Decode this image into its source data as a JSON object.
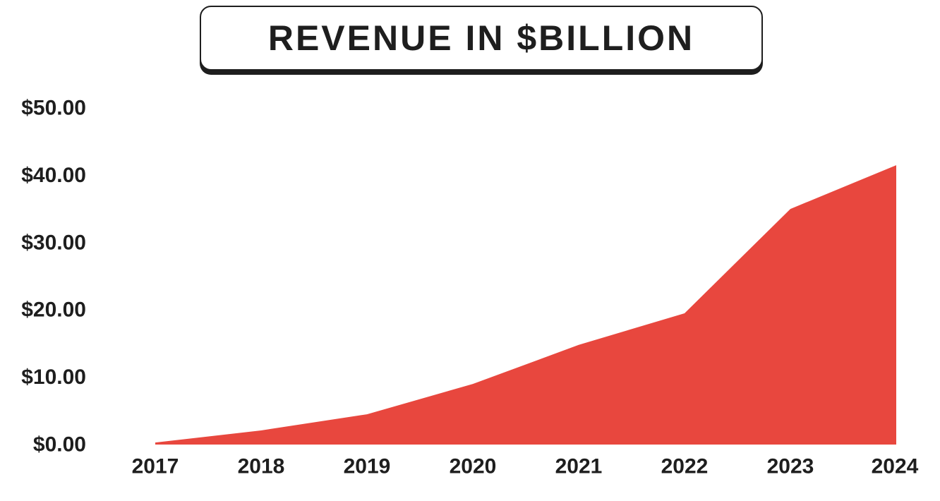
{
  "chart_data": {
    "type": "area",
    "title": "REVENUE IN $BILLION",
    "xlabel": "",
    "ylabel": "",
    "x": [
      "2017",
      "2018",
      "2019",
      "2020",
      "2021",
      "2022",
      "2023",
      "2024"
    ],
    "series": [
      {
        "values": [
          0.3,
          2.1,
          4.5,
          9.0,
          14.8,
          19.5,
          35.0,
          41.5
        ],
        "color": "#e8473e"
      }
    ],
    "ylim": [
      0,
      50
    ],
    "yticks": [
      0,
      10,
      20,
      30,
      40,
      50
    ],
    "ytick_labels": [
      "$0.00",
      "$10.00",
      "$20.00",
      "$30.00",
      "$40.00",
      "$50.00"
    ],
    "grid": false,
    "legend": "none"
  }
}
